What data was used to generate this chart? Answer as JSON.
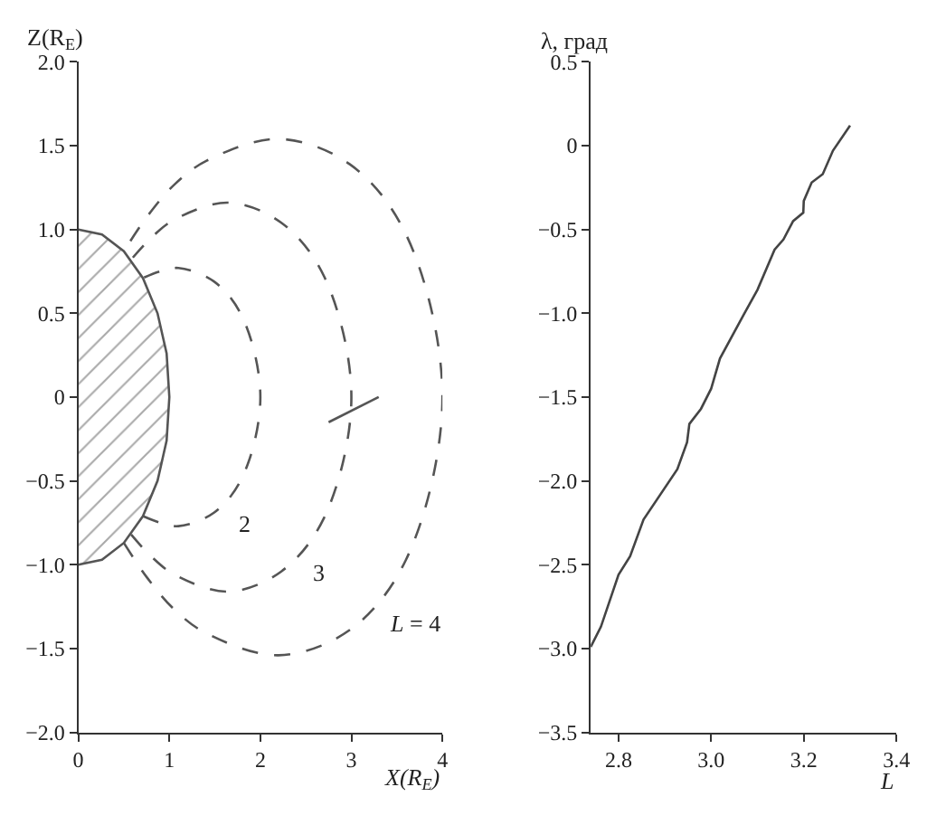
{
  "chart_data": [
    {
      "type": "line",
      "xlabel": "X(R$_{E}$)",
      "ylabel": "Z(R$_{E}$)",
      "xlim": [
        0,
        4
      ],
      "ylim": [
        -2,
        2
      ],
      "xticks": [
        0,
        1,
        2,
        3,
        4
      ],
      "yticks": [
        {
          "value": -2,
          "label": "−2.0"
        },
        {
          "value": -1.5,
          "label": "−1.5"
        },
        {
          "value": -1,
          "label": "−1.0"
        },
        {
          "value": -0.5,
          "label": "−0.5"
        },
        {
          "value": 0,
          "label": "0"
        },
        {
          "value": 0.5,
          "label": "0.5"
        },
        {
          "value": 1,
          "label": "1.0"
        },
        {
          "value": 1.5,
          "label": "1.5"
        },
        {
          "value": 2,
          "label": "2.0"
        }
      ],
      "legend": false,
      "series": [
        {
          "type": "area",
          "color": "#555555",
          "line_style": "solid",
          "x": [
            0,
            0.26,
            0.5,
            0.71,
            0.87,
            0.97,
            1,
            0.97,
            0.87,
            0.71,
            0.5,
            0.26,
            0
          ],
          "values": [
            -1,
            -0.97,
            -0.87,
            -0.71,
            -0.5,
            -0.26,
            0,
            0.26,
            0.5,
            0.71,
            0.87,
            0.97,
            1
          ]
        },
        {
          "type": "line",
          "name": "2",
          "color": "#555555",
          "line_style": "dashed",
          "x": [
            0.71,
            0.9,
            1.1,
            1.49,
            1.8,
            2,
            1.8,
            1.49,
            1.1,
            0.9,
            0.71
          ],
          "values": [
            -0.71,
            -0.75,
            -0.77,
            -0.69,
            -0.48,
            0,
            0.48,
            0.69,
            0.77,
            0.75,
            0.71
          ]
        },
        {
          "type": "line",
          "name": "3",
          "color": "#555555",
          "line_style": "dashed",
          "x": [
            0.58,
            0.8,
            1.06,
            1.65,
            2.23,
            2.7,
            3,
            2.7,
            2.23,
            1.65,
            1.06,
            0.8,
            0.58
          ],
          "values": [
            -0.82,
            -0.95,
            -1.06,
            -1.16,
            -1.04,
            -0.72,
            0,
            0.72,
            1.04,
            1.16,
            1.06,
            0.95,
            0.82
          ]
        },
        {
          "type": "line",
          "name": "L = 4",
          "color": "#555555",
          "line_style": "dashed",
          "x": [
            0.5,
            0.76,
            1.06,
            1.41,
            2.2,
            2.98,
            3.6,
            4,
            3.6,
            2.98,
            2.2,
            1.41,
            1.06,
            0.76,
            0.5
          ],
          "values": [
            -0.87,
            -1.08,
            -1.27,
            -1.41,
            -1.54,
            -1.39,
            -0.97,
            0,
            0.97,
            1.39,
            1.54,
            1.41,
            1.27,
            1.08,
            0.87
          ]
        },
        {
          "type": "line",
          "color": "#555555",
          "line_style": "solid",
          "x": [
            2.75,
            3.3
          ],
          "values": [
            -0.15,
            0.0
          ]
        }
      ]
    },
    {
      "type": "line",
      "xlabel": "L",
      "ylabel": "λ, град",
      "xlim": [
        2.74,
        3.4
      ],
      "ylim": [
        -3.5,
        0.5
      ],
      "xticks": [
        {
          "value": 2.8,
          "label": "2.8"
        },
        {
          "value": 3.0,
          "label": "3.0"
        },
        {
          "value": 3.2,
          "label": "3.2"
        },
        {
          "value": 3.4,
          "label": "3.4"
        }
      ],
      "yticks": [
        {
          "value": -3.5,
          "label": "−3.5"
        },
        {
          "value": -3,
          "label": "−3.0"
        },
        {
          "value": -2.5,
          "label": "−2.5"
        },
        {
          "value": -2,
          "label": "−2.0"
        },
        {
          "value": -1.5,
          "label": "−1.5"
        },
        {
          "value": -1,
          "label": "−1.0"
        },
        {
          "value": -0.5,
          "label": "−0.5"
        },
        {
          "value": 0,
          "label": "0"
        },
        {
          "value": 0.5,
          "label": "0.5"
        }
      ],
      "legend": false,
      "series": [
        {
          "color": "#444444",
          "line_style": "solid",
          "x": [
            2.74,
            2.762,
            2.8,
            2.825,
            2.854,
            2.927,
            2.948,
            2.953,
            2.978,
            3.0,
            3.019,
            3.07,
            3.1,
            3.137,
            3.156,
            3.177,
            3.199,
            3.2,
            3.217,
            3.241,
            3.263,
            3.3
          ],
          "values": [
            -2.99,
            -2.87,
            -2.56,
            -2.45,
            -2.23,
            -1.93,
            -1.77,
            -1.66,
            -1.57,
            -1.45,
            -1.27,
            -1.01,
            -0.86,
            -0.62,
            -0.56,
            -0.45,
            -0.4,
            -0.33,
            -0.22,
            -0.17,
            -0.03,
            0.12
          ]
        }
      ]
    }
  ]
}
